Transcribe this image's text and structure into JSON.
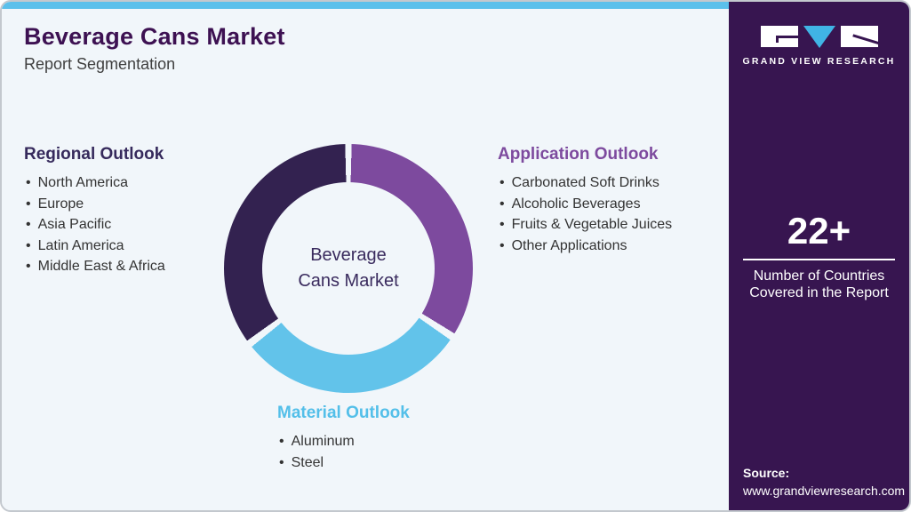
{
  "page": {
    "title": "Beverage Cans Market",
    "subtitle": "Report Segmentation"
  },
  "donut": {
    "center_label_line1": "Beverage",
    "center_label_line2": "Cans Market",
    "gap_color": "#f1f6fa",
    "segments": [
      {
        "name": "Application Outlook",
        "color": "#7d4a9e",
        "start_deg": 1.5,
        "end_deg": 121.5
      },
      {
        "name": "Material Outlook",
        "color": "#62c3ea",
        "start_deg": 125,
        "end_deg": 231
      },
      {
        "name": "Regional Outlook",
        "color": "#332250",
        "start_deg": 234.5,
        "end_deg": 358.5
      }
    ]
  },
  "sections": {
    "regional": {
      "title": "Regional Outlook",
      "items": [
        "North America",
        "Europe",
        "Asia Pacific",
        "Latin America",
        "Middle East & Africa"
      ]
    },
    "application": {
      "title": "Application Outlook",
      "items": [
        "Carbonated Soft Drinks",
        "Alcoholic Beverages",
        "Fruits & Vegetable Juices",
        "Other Applications"
      ]
    },
    "material": {
      "title": "Material Outlook",
      "items": [
        "Aluminum",
        "Steel"
      ]
    }
  },
  "sidebar": {
    "brand": "GRAND VIEW RESEARCH",
    "stat_value": "22+",
    "stat_label": "Number of Countries Covered in the Report",
    "source_label": "Source:",
    "source_url": "www.grandviewresearch.com"
  },
  "colors": {
    "title_purple": "#3d1152",
    "accent_cyan": "#5bc0eb",
    "sidebar_purple": "#371550",
    "segment_purple": "#7d4a9e",
    "segment_blue": "#62c3ea",
    "segment_dark": "#332250"
  },
  "chart_data": {
    "type": "pie",
    "title": "Beverage Cans Market — Report Segmentation",
    "categories": [
      "Application Outlook",
      "Material Outlook",
      "Regional Outlook"
    ],
    "values_pct_est": [
      33,
      30,
      37
    ],
    "center_label": "Beverage Cans Market",
    "note": "Decorative segmentation donut; segment sizes are not labeled in the image (three roughly equal thirds with small white gaps, starting at 12 o'clock clockwise: purple, blue, dark purple)."
  }
}
